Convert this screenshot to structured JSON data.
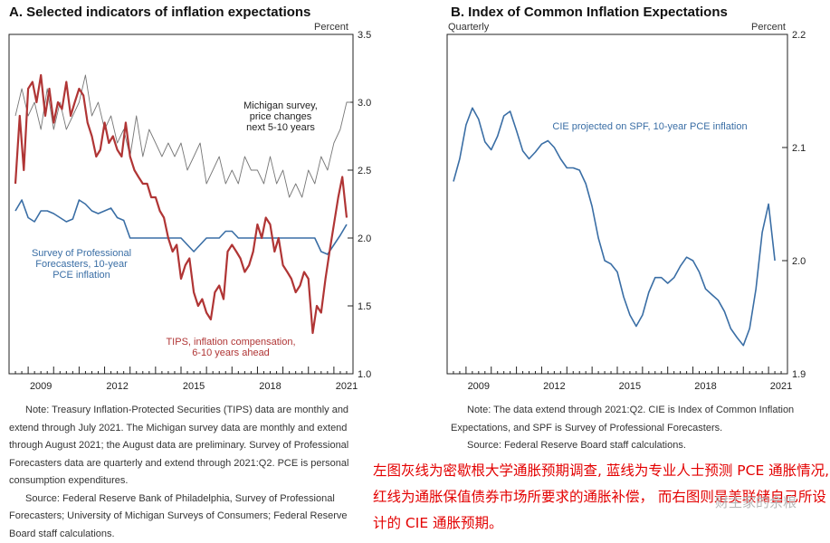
{
  "panel_a": {
    "title": "A. Selected indicators of inflation expectations",
    "unit": "Percent",
    "notes": [
      "Note:  Treasury Inflation-Protected Securities (TIPS) data are monthly and extend through July 2021. The Michigan survey data are monthly and extend through August 2021; the August data are preliminary. Survey of Professional Forecasters data are quarterly and extend through 2021:Q2. PCE is personal consumption expenditures.",
      "Source:  Federal Reserve Bank of Philadelphia, Survey of Professional Forecasters; University of Michigan Surveys of Consumers; Federal Reserve Board staff calculations."
    ]
  },
  "panel_b": {
    "title": "B. Index of Common Inflation Expectations",
    "unit": "Percent",
    "freq": "Quarterly",
    "notes": [
      "Note:  The data extend through 2021:Q2. CIE is Index of Common Inflation Expectations, and SPF is Survey of Professional Forecasters.",
      "Source:  Federal Reserve Board staff calculations."
    ]
  },
  "annotation_cn": "左图灰线为密歇根大学通胀预期调查, 蓝线为专业人士预测 PCE 通胀情况, 红线为通胀保值债券市场所要求的通胀补偿， 而右图则是美联储自己所设计的 CIE 通胀预期。",
  "watermark": "财主家的余粮",
  "chart_data": [
    {
      "type": "line",
      "title": "A. Selected indicators of inflation expectations",
      "ylabel": "Percent",
      "ylim": [
        1.0,
        3.5
      ],
      "yticks": [
        "1.0",
        "1.5",
        "2.0",
        "2.5",
        "3.0",
        "3.5"
      ],
      "xlim": [
        2008.25,
        2021.75
      ],
      "xticks": [
        "2009",
        "2012",
        "2015",
        "2018",
        "2021"
      ],
      "series": [
        {
          "name": "Michigan survey, price changes next 5-10 years",
          "label_lines": [
            "Michigan survey,",
            "price changes",
            "next 5-10 years"
          ],
          "color": "#777777",
          "x": [
            2008.5,
            2008.75,
            2009.0,
            2009.25,
            2009.5,
            2009.75,
            2010.0,
            2010.25,
            2010.5,
            2010.75,
            2011.0,
            2011.25,
            2011.5,
            2011.75,
            2012.0,
            2012.25,
            2012.5,
            2012.75,
            2013.0,
            2013.25,
            2013.5,
            2013.75,
            2014.0,
            2014.25,
            2014.5,
            2014.75,
            2015.0,
            2015.25,
            2015.5,
            2015.75,
            2016.0,
            2016.25,
            2016.5,
            2016.75,
            2017.0,
            2017.25,
            2017.5,
            2017.75,
            2018.0,
            2018.25,
            2018.5,
            2018.75,
            2019.0,
            2019.25,
            2019.5,
            2019.75,
            2020.0,
            2020.25,
            2020.5,
            2020.75,
            2021.0,
            2021.25,
            2021.5,
            2021.65
          ],
          "values": [
            2.9,
            3.1,
            2.9,
            3.0,
            2.8,
            3.1,
            2.8,
            3.0,
            2.8,
            2.9,
            3.0,
            3.2,
            2.9,
            3.0,
            2.8,
            2.9,
            2.7,
            2.8,
            2.6,
            2.9,
            2.6,
            2.8,
            2.7,
            2.6,
            2.7,
            2.6,
            2.7,
            2.5,
            2.6,
            2.7,
            2.4,
            2.5,
            2.6,
            2.4,
            2.5,
            2.4,
            2.6,
            2.5,
            2.5,
            2.4,
            2.6,
            2.4,
            2.5,
            2.3,
            2.4,
            2.3,
            2.5,
            2.4,
            2.6,
            2.5,
            2.7,
            2.8,
            3.0,
            3.0
          ]
        },
        {
          "name": "Survey of Professional Forecasters, 10-year PCE inflation",
          "label_lines": [
            "Survey of Professional",
            "Forecasters, 10-year",
            "PCE inflation"
          ],
          "color": "#3a6ea5",
          "x": [
            2008.5,
            2008.75,
            2009.0,
            2009.25,
            2009.5,
            2009.75,
            2010.0,
            2010.25,
            2010.5,
            2010.75,
            2011.0,
            2011.25,
            2011.5,
            2011.75,
            2012.0,
            2012.25,
            2012.5,
            2012.75,
            2013.0,
            2013.25,
            2013.5,
            2013.75,
            2014.0,
            2014.25,
            2014.5,
            2014.75,
            2015.0,
            2015.25,
            2015.5,
            2015.75,
            2016.0,
            2016.25,
            2016.5,
            2016.75,
            2017.0,
            2017.25,
            2017.5,
            2017.75,
            2018.0,
            2018.25,
            2018.5,
            2018.75,
            2019.0,
            2019.25,
            2019.5,
            2019.75,
            2020.0,
            2020.25,
            2020.5,
            2020.75,
            2021.0,
            2021.25,
            2021.5
          ],
          "values": [
            2.2,
            2.28,
            2.15,
            2.12,
            2.2,
            2.2,
            2.18,
            2.15,
            2.12,
            2.14,
            2.28,
            2.25,
            2.2,
            2.18,
            2.2,
            2.22,
            2.15,
            2.13,
            2.0,
            2.0,
            2.0,
            2.0,
            2.0,
            2.0,
            2.0,
            2.0,
            2.0,
            1.95,
            1.9,
            1.95,
            2.0,
            2.0,
            2.0,
            2.05,
            2.05,
            2.0,
            2.0,
            2.0,
            2.0,
            2.0,
            2.0,
            2.0,
            2.0,
            2.0,
            2.0,
            2.0,
            2.0,
            2.0,
            1.9,
            1.88,
            1.95,
            2.02,
            2.1
          ]
        },
        {
          "name": "TIPS, inflation compensation, 6-10 years ahead",
          "label_lines": [
            "TIPS, inflation compensation,",
            "6-10 years ahead"
          ],
          "color": "#b03535",
          "x": [
            2008.5,
            2008.67,
            2008.83,
            2009.0,
            2009.17,
            2009.33,
            2009.5,
            2009.67,
            2009.83,
            2010.0,
            2010.17,
            2010.33,
            2010.5,
            2010.67,
            2010.83,
            2011.0,
            2011.17,
            2011.33,
            2011.5,
            2011.67,
            2011.83,
            2012.0,
            2012.17,
            2012.33,
            2012.5,
            2012.67,
            2012.83,
            2013.0,
            2013.17,
            2013.33,
            2013.5,
            2013.67,
            2013.83,
            2014.0,
            2014.17,
            2014.33,
            2014.5,
            2014.67,
            2014.83,
            2015.0,
            2015.17,
            2015.33,
            2015.5,
            2015.67,
            2015.83,
            2016.0,
            2016.17,
            2016.33,
            2016.5,
            2016.67,
            2016.83,
            2017.0,
            2017.17,
            2017.33,
            2017.5,
            2017.67,
            2017.83,
            2018.0,
            2018.17,
            2018.33,
            2018.5,
            2018.67,
            2018.83,
            2019.0,
            2019.17,
            2019.33,
            2019.5,
            2019.67,
            2019.83,
            2020.0,
            2020.17,
            2020.33,
            2020.5,
            2020.67,
            2020.83,
            2021.0,
            2021.17,
            2021.33,
            2021.5
          ],
          "values": [
            2.4,
            2.9,
            2.5,
            3.1,
            3.15,
            3.0,
            3.2,
            2.9,
            3.1,
            2.85,
            3.0,
            2.95,
            3.15,
            2.9,
            3.0,
            3.1,
            3.05,
            2.85,
            2.75,
            2.6,
            2.65,
            2.85,
            2.7,
            2.75,
            2.65,
            2.6,
            2.85,
            2.6,
            2.5,
            2.45,
            2.4,
            2.4,
            2.3,
            2.3,
            2.2,
            2.15,
            2.0,
            1.9,
            1.95,
            1.7,
            1.8,
            1.85,
            1.6,
            1.5,
            1.55,
            1.45,
            1.4,
            1.6,
            1.65,
            1.55,
            1.9,
            1.95,
            1.9,
            1.85,
            1.75,
            1.8,
            1.9,
            2.1,
            2.0,
            2.15,
            2.1,
            1.9,
            2.0,
            1.8,
            1.75,
            1.7,
            1.6,
            1.65,
            1.75,
            1.7,
            1.3,
            1.5,
            1.45,
            1.7,
            1.9,
            2.1,
            2.3,
            2.45,
            2.15
          ]
        }
      ]
    },
    {
      "type": "line",
      "title": "B. Index of Common Inflation Expectations",
      "ylabel": "Percent",
      "ylim": [
        1.9,
        2.2
      ],
      "yticks": [
        "1.9",
        "2.0",
        "2.1",
        "2.2"
      ],
      "xlim": [
        2008.25,
        2021.75
      ],
      "xticks": [
        "2009",
        "2012",
        "2015",
        "2018",
        "2021"
      ],
      "series": [
        {
          "name": "CIE projected on SPF, 10-year PCE inflation",
          "label_lines": [
            "CIE projected on SPF, 10-year PCE inflation"
          ],
          "color": "#3a6ea5",
          "x": [
            2008.5,
            2008.75,
            2009.0,
            2009.25,
            2009.5,
            2009.75,
            2010.0,
            2010.25,
            2010.5,
            2010.75,
            2011.0,
            2011.25,
            2011.5,
            2011.75,
            2012.0,
            2012.25,
            2012.5,
            2012.75,
            2013.0,
            2013.25,
            2013.5,
            2013.75,
            2014.0,
            2014.25,
            2014.5,
            2014.75,
            2015.0,
            2015.25,
            2015.5,
            2015.75,
            2016.0,
            2016.25,
            2016.5,
            2016.75,
            2017.0,
            2017.25,
            2017.5,
            2017.75,
            2018.0,
            2018.25,
            2018.5,
            2018.75,
            2019.0,
            2019.25,
            2019.5,
            2019.75,
            2020.0,
            2020.25,
            2020.5,
            2020.75,
            2021.0,
            2021.25
          ],
          "values": [
            2.07,
            2.09,
            2.12,
            2.135,
            2.125,
            2.105,
            2.098,
            2.11,
            2.128,
            2.132,
            2.115,
            2.097,
            2.09,
            2.096,
            2.103,
            2.106,
            2.1,
            2.09,
            2.082,
            2.082,
            2.08,
            2.068,
            2.048,
            2.02,
            2.0,
            1.997,
            1.99,
            1.968,
            1.952,
            1.942,
            1.952,
            1.972,
            1.985,
            1.985,
            1.98,
            1.985,
            1.995,
            2.003,
            2.0,
            1.99,
            1.975,
            1.97,
            1.965,
            1.955,
            1.94,
            1.932,
            1.925,
            1.94,
            1.975,
            2.025,
            2.05,
            2.0
          ]
        }
      ]
    }
  ]
}
